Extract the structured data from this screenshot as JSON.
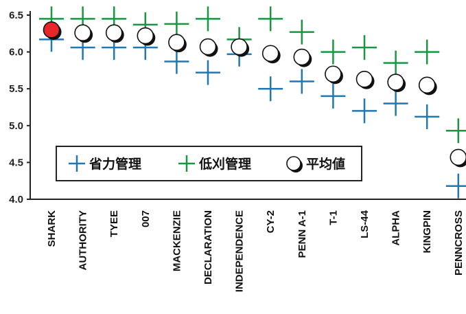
{
  "chart_data": {
    "type": "scatter",
    "categories": [
      "SHARK",
      "AUTHORITY",
      "TYEE",
      "007",
      "MACKENZIE",
      "DECLARATION",
      "INDEPENDENCE",
      "CY-2",
      "PENN A-1",
      "T-1",
      "LS-44",
      "ALPHA",
      "KINGPIN",
      "PENNCROSS"
    ],
    "series": [
      {
        "name": "省力管理",
        "marker": "plus",
        "color": "#1f77b4",
        "values": [
          6.17,
          6.06,
          6.06,
          6.06,
          5.87,
          5.72,
          5.97,
          5.5,
          5.6,
          5.4,
          5.2,
          5.3,
          5.12,
          4.18
        ]
      },
      {
        "name": "低刈管理",
        "marker": "plus",
        "color": "#1a9641",
        "values": [
          6.45,
          6.45,
          6.45,
          6.37,
          6.38,
          6.45,
          6.17,
          6.45,
          6.27,
          6.0,
          6.06,
          5.85,
          6.0,
          4.93
        ]
      },
      {
        "name": "平均値",
        "marker": "circle",
        "color": "#ffffff",
        "highlight_color": "#e8262a",
        "highlight_index": 0,
        "values": [
          6.3,
          6.26,
          6.26,
          6.22,
          6.13,
          6.07,
          6.07,
          5.98,
          5.93,
          5.7,
          5.63,
          5.59,
          5.55,
          4.57
        ]
      }
    ],
    "y_ticks": [
      "4.0",
      "4.5",
      "5.0",
      "5.5",
      "6.0",
      "6.5"
    ],
    "ylim": [
      4.0,
      6.5
    ],
    "title": "",
    "xlabel": "",
    "ylabel": "",
    "grid": false,
    "legend": "inside-lower-left"
  }
}
